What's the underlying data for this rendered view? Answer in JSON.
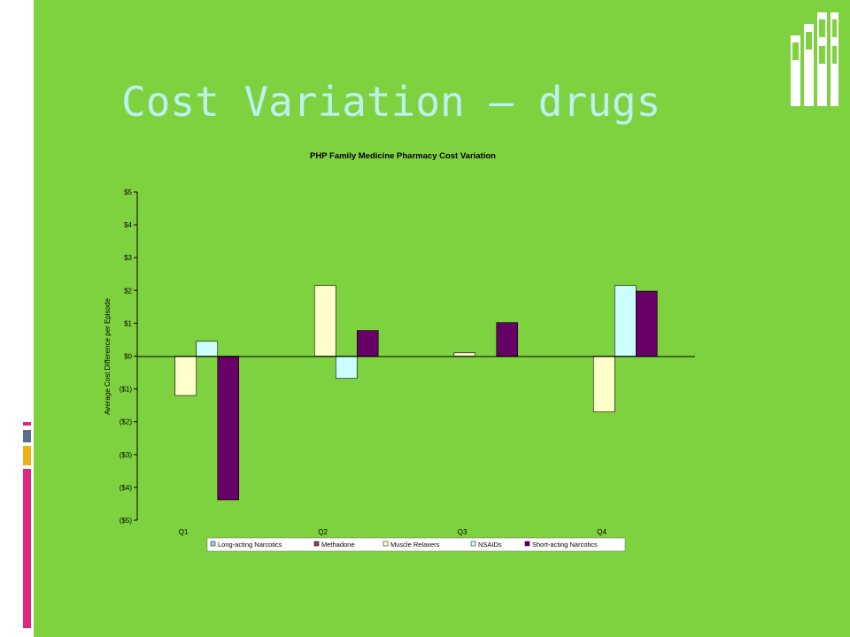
{
  "slide": {
    "title": "Cost Variation – drugs",
    "background": "#7fd23f",
    "title_color": "#bdf0f0"
  },
  "chart_data": {
    "type": "bar",
    "title": "PHP Family Medicine Pharmacy Cost Variation",
    "ylabel": "Average Cost Difference per Episode",
    "xlabel": "",
    "ylim": [
      -5,
      5
    ],
    "y_ticks": [
      5,
      4,
      3,
      2,
      1,
      0,
      -1,
      -2,
      -3,
      -4,
      -5
    ],
    "y_tick_labels": [
      "$5",
      "$4",
      "$3",
      "$2",
      "$1",
      "$0",
      "($1)",
      "($2)",
      "($3)",
      "($4)",
      "($5)"
    ],
    "categories": [
      "Q1",
      "Q2",
      "Q3",
      "Q4"
    ],
    "series": [
      {
        "name": "Long-acting Narcotics",
        "color": "#99ccff",
        "values": [
          null,
          null,
          null,
          null
        ]
      },
      {
        "name": "Methadone",
        "color": "#993366",
        "values": [
          null,
          null,
          null,
          null
        ]
      },
      {
        "name": "Muscle Relaxers",
        "color": "#ffffcc",
        "values": [
          -1.2,
          2.15,
          0.1,
          -1.7
        ]
      },
      {
        "name": "NSAIDs",
        "color": "#ccffff",
        "values": [
          0.45,
          -0.68,
          null,
          2.15
        ]
      },
      {
        "name": "Short-acting Narcotics",
        "color": "#660066",
        "values": [
          -4.38,
          0.78,
          1.02,
          1.98
        ]
      }
    ],
    "grid": false,
    "legend_position": "bottom"
  }
}
